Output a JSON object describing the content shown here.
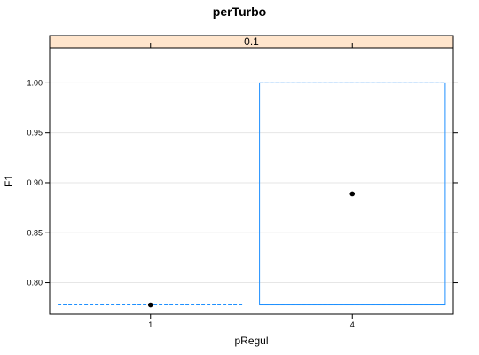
{
  "chart_data": {
    "type": "box",
    "title": "perTurbo",
    "xlabel": "pRegul",
    "ylabel": "F1",
    "panel_strip": "0.1",
    "categories": [
      "1",
      "4"
    ],
    "yticks": [
      "0.80",
      "0.85",
      "0.90",
      "0.95",
      "1.00"
    ],
    "ylim": [
      0.7685,
      1.035
    ],
    "grid": true,
    "series": [
      {
        "category": "1",
        "min": 0.7778,
        "q1": 0.7778,
        "median": 0.7778,
        "q3": 0.7778,
        "max": 0.7778,
        "mean": 0.7778
      },
      {
        "category": "4",
        "min": 0.7778,
        "q1": 0.7778,
        "median": 0.8889,
        "q3": 1.0,
        "max": 1.0,
        "mean": 0.8889
      }
    ],
    "colors": {
      "box": "#1e90ff",
      "strip": "#ffe5cc",
      "point": "#000000",
      "grid": "#e6e6e6"
    }
  }
}
